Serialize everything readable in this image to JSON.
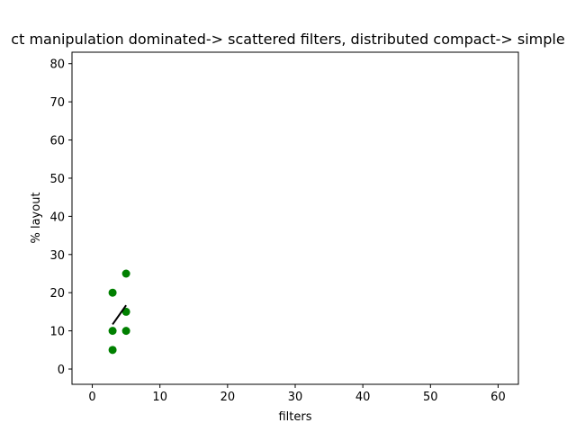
{
  "chart_data": {
    "type": "scatter",
    "title": "ct manipulation dominated-> scattered filters, distributed compact-> simple",
    "xlabel": "filters",
    "ylabel": "% layout",
    "xlim": [
      -3,
      63
    ],
    "ylim": [
      -4,
      83
    ],
    "xticks": [
      0,
      10,
      20,
      30,
      40,
      50,
      60
    ],
    "yticks": [
      0,
      10,
      20,
      30,
      40,
      50,
      60,
      70,
      80
    ],
    "grid": false,
    "legend": "none",
    "series": [
      {
        "marker": "circle",
        "color": "#008000",
        "points": [
          {
            "x": 3,
            "y": 20
          },
          {
            "x": 3,
            "y": 10
          },
          {
            "x": 3,
            "y": 5
          },
          {
            "x": 5,
            "y": 25
          },
          {
            "x": 5,
            "y": 15
          },
          {
            "x": 5,
            "y": 10
          }
        ]
      }
    ],
    "fit_line": {
      "color": "#000000",
      "points": [
        {
          "x": 3,
          "y": 11.7
        },
        {
          "x": 5,
          "y": 16.7
        }
      ]
    }
  }
}
